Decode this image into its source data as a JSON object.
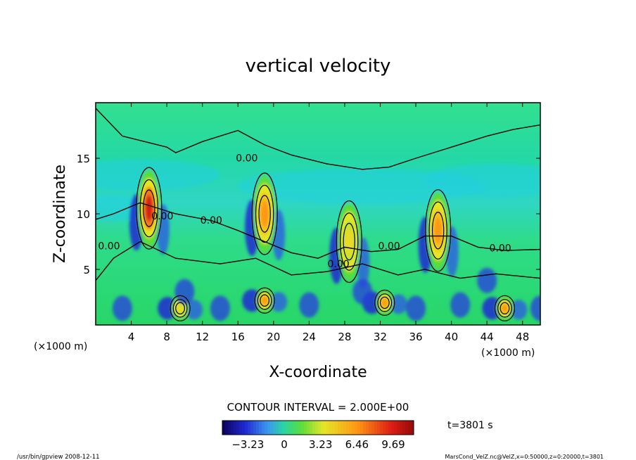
{
  "chart_data": {
    "type": "heatmap",
    "title": "vertical velocity",
    "xlabel": "X-coordinate",
    "ylabel": "Z-coordinate",
    "x_unit_left": "(×1000 m)",
    "x_unit_right": "(×1000 m)",
    "xlim": [
      0,
      50
    ],
    "ylim": [
      0,
      20
    ],
    "x_ticks": [
      4,
      8,
      12,
      16,
      20,
      24,
      28,
      32,
      36,
      40,
      44,
      48
    ],
    "y_ticks": [
      5,
      10,
      15
    ],
    "contour_interval_text": "CONTOUR INTERVAL = 2.000E+00",
    "contour_labels": [
      {
        "text": "0.00",
        "x": 17,
        "z": 14.7
      },
      {
        "text": "0.00",
        "x": 13,
        "z": 9.1
      },
      {
        "text": "0.00",
        "x": 1.5,
        "z": 6.8
      },
      {
        "text": "0.00",
        "x": 33,
        "z": 6.8
      },
      {
        "text": "0.00",
        "x": 45.5,
        "z": 6.6
      },
      {
        "text": "0.00",
        "x": 27.3,
        "z": 5.2
      },
      {
        "text": "0.00",
        "x": 7.5,
        "z": 9.5
      }
    ],
    "updrafts": [
      {
        "x": 6.0,
        "z": 10.5,
        "peak": 9.69
      },
      {
        "x": 19.0,
        "z": 10.0,
        "peak": 6.46
      },
      {
        "x": 28.5,
        "z": 7.5,
        "peak": 4.0
      },
      {
        "x": 38.5,
        "z": 8.5,
        "peak": 6.46
      },
      {
        "x": 9.5,
        "z": 1.5,
        "peak": 4.0
      },
      {
        "x": 19.0,
        "z": 2.2,
        "peak": 6.46
      },
      {
        "x": 32.5,
        "z": 2.0,
        "peak": 6.46
      },
      {
        "x": 46.0,
        "z": 1.5,
        "peak": 6.46
      }
    ],
    "colorbar": {
      "ticks": [
        "−3.23",
        "0",
        "3.23",
        "6.46",
        "9.69"
      ],
      "vmin": -5.5,
      "vmax": 11.5
    }
  },
  "annotations": {
    "time": "t=3801 s",
    "program": "/usr/bin/gpview   2008-12-11",
    "source": "MarsCond_VelZ.nc@VelZ,x=0:50000,z=0:20000,t=3801"
  }
}
